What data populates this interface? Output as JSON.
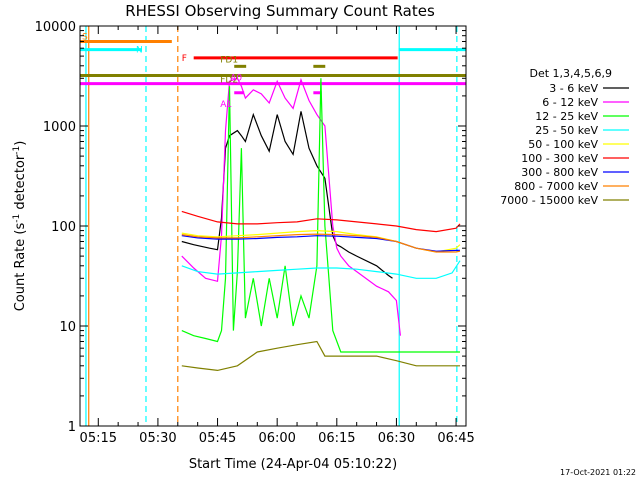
{
  "chart_data": {
    "type": "line",
    "title": "RHESSI Observing Summary Count Rates",
    "xlabel": "Start Time (24-Apr-04 05:10:22)",
    "ylabel": "Count Rate (s⁻¹ detector⁻¹)",
    "ylabel_parts": [
      "Count Rate (s",
      "-1",
      " detector",
      "-1",
      ")"
    ],
    "y_scale": "log",
    "ylim": [
      1,
      10000
    ],
    "xlim": [
      310.4,
      407.5
    ],
    "x_unit": "minutes after 00:00 UT",
    "x_ticks": [
      {
        "label": "05:15",
        "v": 315
      },
      {
        "label": "05:30",
        "v": 330
      },
      {
        "label": "05:45",
        "v": 345
      },
      {
        "label": "06:00",
        "v": 360
      },
      {
        "label": "06:15",
        "v": 375
      },
      {
        "label": "06:30",
        "v": 390
      },
      {
        "label": "06:45",
        "v": 405
      }
    ],
    "y_ticks": [
      {
        "label": "1",
        "v": 1
      },
      {
        "label": "10",
        "v": 10
      },
      {
        "label": "100",
        "v": 100
      },
      {
        "label": "1000",
        "v": 1000
      },
      {
        "label": "10000",
        "v": 10000
      }
    ],
    "legend_title": "Det 1,3,4,5,6,9",
    "legend_placement": "right",
    "footer": "17-Oct-2021 01:22",
    "series": [
      {
        "name": "3 - 6 keV",
        "color": "#000000",
        "x": [
          336,
          339,
          343,
          345,
          346,
          347,
          348,
          350,
          351,
          352,
          354,
          356,
          358,
          360,
          362,
          364,
          366,
          368,
          370,
          372,
          374,
          375,
          376,
          378,
          380,
          385,
          388,
          389
        ],
        "y": [
          70,
          65,
          60,
          58,
          120,
          600,
          800,
          900,
          800,
          700,
          1300,
          800,
          560,
          1300,
          700,
          520,
          1400,
          600,
          400,
          300,
          80,
          65,
          62,
          55,
          50,
          40,
          32,
          30
        ]
      },
      {
        "name": "6 - 12 keV",
        "color": "#ff00ff",
        "x": [
          336,
          339,
          342,
          345,
          346,
          347,
          348,
          350,
          351,
          352,
          354,
          356,
          358,
          360,
          362,
          364,
          366,
          368,
          370,
          372,
          374,
          375,
          376,
          378,
          380,
          385,
          388,
          390,
          391
        ],
        "y": [
          50,
          38,
          30,
          28,
          80,
          900,
          2800,
          3000,
          2500,
          1900,
          2300,
          2100,
          1700,
          2800,
          1900,
          1500,
          2900,
          1800,
          1300,
          1000,
          100,
          60,
          50,
          40,
          35,
          25,
          22,
          18,
          8
        ]
      },
      {
        "name": "12 - 25 keV",
        "color": "#00ff00",
        "x": [
          336,
          339,
          342,
          345,
          346,
          347,
          348,
          349,
          350,
          351,
          352,
          354,
          356,
          358,
          360,
          362,
          364,
          366,
          368,
          370,
          371,
          372,
          373,
          374,
          376,
          380,
          385,
          390,
          400,
          406
        ],
        "y": [
          9,
          8,
          7.5,
          7,
          9,
          30,
          2500,
          9,
          35,
          600,
          12,
          30,
          10,
          30,
          12,
          40,
          10,
          20,
          12,
          40,
          3000,
          100,
          30,
          9,
          5.5,
          5.5,
          5.5,
          5.5,
          5.5,
          5.5
        ]
      },
      {
        "name": "25 - 50 keV",
        "color": "#00ffff",
        "x": [
          336,
          340,
          345,
          350,
          355,
          360,
          365,
          370,
          375,
          380,
          385,
          390,
          395,
          400,
          404,
          406
        ],
        "y": [
          40,
          35,
          33,
          34,
          35,
          36,
          37,
          38,
          38,
          37,
          35,
          33,
          30,
          30,
          34,
          45
        ]
      },
      {
        "name": "50 - 100 keV",
        "color": "#ffff00",
        "x": [
          336,
          340,
          345,
          350,
          355,
          360,
          365,
          370,
          375,
          380,
          385,
          390,
          395,
          400,
          405,
          406
        ],
        "y": [
          85,
          80,
          78,
          80,
          82,
          85,
          88,
          90,
          88,
          82,
          78,
          70,
          60,
          55,
          60,
          65
        ]
      },
      {
        "name": "100 - 300 keV",
        "color": "#ff0000",
        "x": [
          336,
          340,
          345,
          350,
          355,
          360,
          365,
          370,
          375,
          380,
          385,
          390,
          395,
          400,
          405,
          406
        ],
        "y": [
          140,
          125,
          110,
          105,
          105,
          108,
          110,
          118,
          115,
          110,
          105,
          100,
          92,
          88,
          95,
          105
        ]
      },
      {
        "name": "300 - 800 keV",
        "color": "#0000ff",
        "x": [
          336,
          340,
          345,
          350,
          355,
          360,
          365,
          370,
          375,
          380,
          385,
          390,
          395,
          400,
          405,
          406
        ],
        "y": [
          80,
          76,
          74,
          74,
          75,
          77,
          78,
          80,
          79,
          77,
          75,
          70,
          60,
          56,
          57,
          57
        ]
      },
      {
        "name": "800 - 7000 keV",
        "color": "#ff8000",
        "x": [
          336,
          340,
          345,
          350,
          355,
          360,
          365,
          370,
          375,
          380,
          385,
          390,
          395,
          400,
          405,
          406
        ],
        "y": [
          82,
          78,
          76,
          76,
          78,
          80,
          82,
          83,
          82,
          80,
          77,
          70,
          60,
          55,
          55,
          56
        ]
      },
      {
        "name": "7000 - 15000 keV",
        "color": "#808000",
        "x": [
          336,
          340,
          345,
          350,
          355,
          360,
          365,
          370,
          372,
          375,
          380,
          385,
          390,
          395,
          400,
          405,
          406
        ],
        "y": [
          4,
          3.8,
          3.6,
          4,
          5.5,
          6,
          6.5,
          7,
          5,
          5,
          5,
          5,
          4.5,
          4,
          4,
          4,
          4
        ]
      }
    ],
    "vlines": [
      {
        "x": 311.9,
        "color": "#00ffff",
        "dashed": false
      },
      {
        "x": 312.6,
        "color": "#ff8000",
        "dashed": false
      },
      {
        "x": 327.0,
        "color": "#00ffff",
        "dashed": true
      },
      {
        "x": 335.0,
        "color": "#ff8000",
        "dashed": true
      },
      {
        "x": 390.7,
        "color": "#00ffff",
        "dashed": false
      },
      {
        "x": 405.2,
        "color": "#00ffff",
        "dashed": true
      }
    ],
    "flags": [
      {
        "label": "S",
        "color": "#ff8000",
        "y": 7000,
        "x0": 310.4,
        "x1": 333.5
      },
      {
        "label": "N",
        "color": "#00ffff",
        "y": 5800,
        "x0": 310.4,
        "x1": 326.0,
        "x2": 390.6,
        "x3": 407.5
      },
      {
        "label": "F",
        "color": "#ff0000",
        "y": 4800,
        "x0": 339.0,
        "x1": 390.3
      },
      {
        "label": "FD1",
        "color": "#808000",
        "y": 3950,
        "x0": 349.2,
        "x1": 352.2,
        "x2": 369.1,
        "x3": 372.1
      },
      {
        "label": "FD2",
        "color": "#808000",
        "y": 3200,
        "x0": 310.4,
        "x1": 407.5
      },
      {
        "label": "A1",
        "color": "#ff00ff",
        "y": 2150,
        "x0": 349.2,
        "x1": 351.7,
        "x2": 369.1,
        "x3": 371.2
      },
      {
        "label": "A0",
        "color": "#ff00ff",
        "y": 2650,
        "x0": 310.4,
        "x1": 407.5
      }
    ]
  }
}
